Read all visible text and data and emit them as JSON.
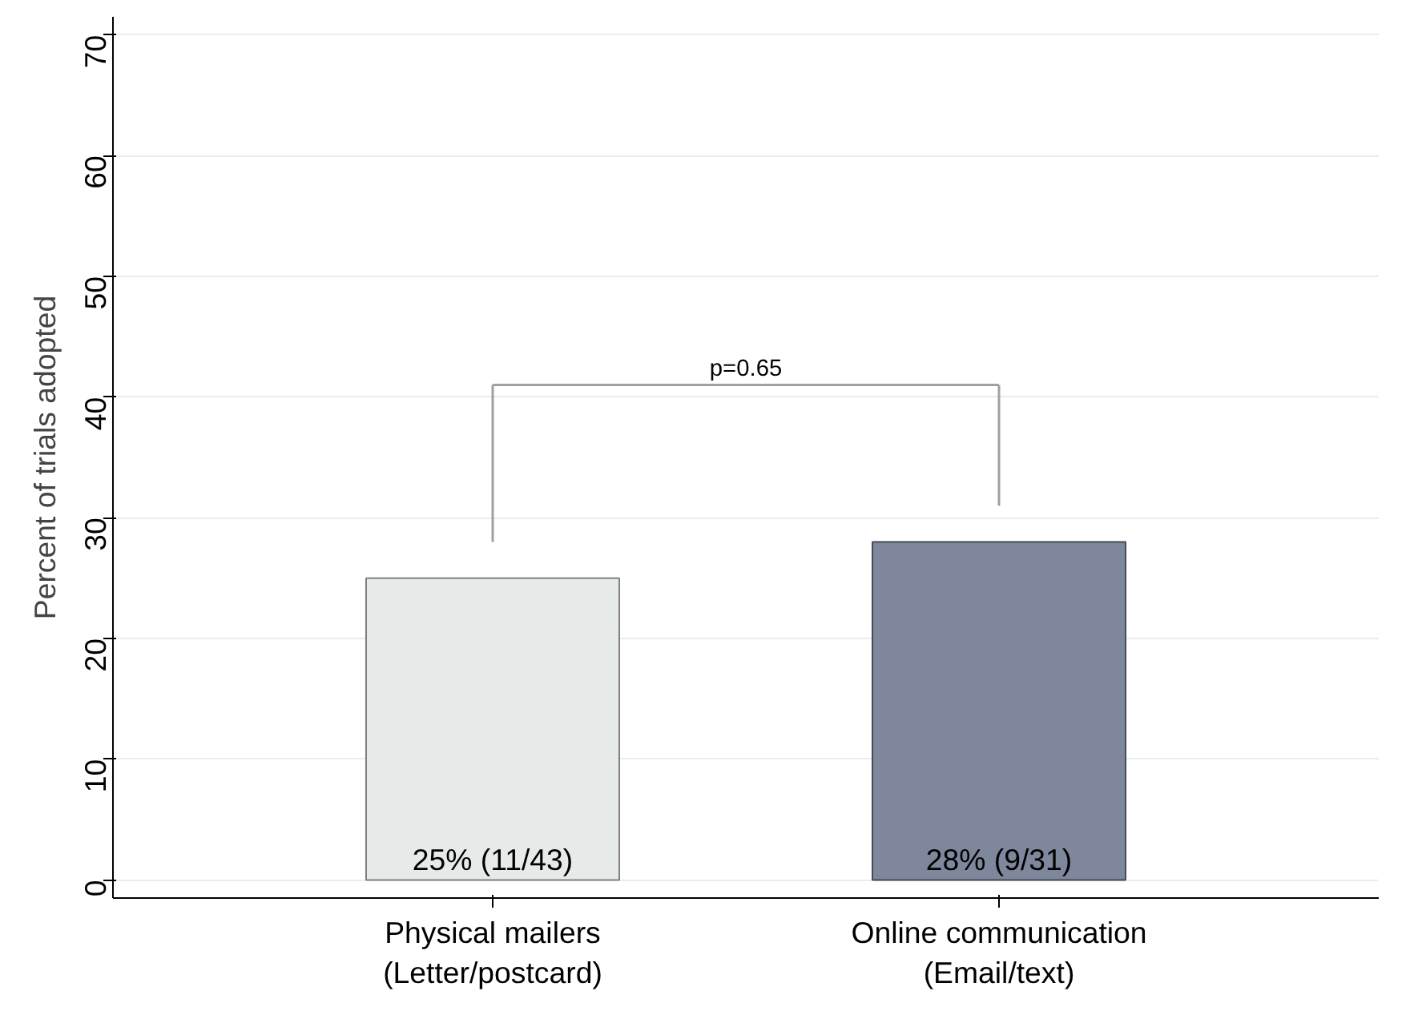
{
  "chart_data": {
    "type": "bar",
    "ylabel": "Percent of trials adopted",
    "categories": [
      "Physical mailers\n(Letter/postcard)",
      "Online communication\n(Email/text)"
    ],
    "values": [
      25,
      28
    ],
    "colors": [
      "#e6ebe9",
      "#7f879c"
    ],
    "value_labels": [
      "25% (11/43)",
      "28% (9/31)"
    ],
    "annotations": [
      "p=0.65"
    ],
    "ylim": [
      -1.5,
      71.5
    ],
    "yticks": [
      0,
      10,
      20,
      30,
      40,
      50,
      60,
      70
    ],
    "grid": "y"
  }
}
